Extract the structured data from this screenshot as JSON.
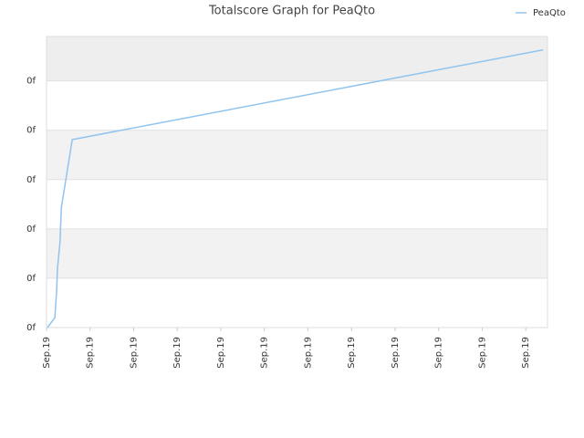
{
  "chart_data": {
    "type": "line",
    "title": "Totalscore Graph for PeaQto",
    "x": [
      0.02,
      0.19,
      0.23,
      0.25,
      0.31,
      0.34,
      0.59,
      11.4
    ],
    "series": [
      {
        "name": "PeaQto",
        "color": "#90c4ee",
        "values": [
          0,
          0.2,
          0.72,
          1.19,
          1.74,
          2.43,
          3.81,
          5.63
        ]
      }
    ],
    "xlim": [
      0,
      11.5
    ],
    "xticks": [
      {
        "value": 0,
        "label": "Sep.19"
      },
      {
        "value": 1,
        "label": "Sep.19"
      },
      {
        "value": 2,
        "label": "Sep.19"
      },
      {
        "value": 3,
        "label": "Sep.19"
      },
      {
        "value": 4,
        "label": "Sep.19"
      },
      {
        "value": 5,
        "label": "Sep.19"
      },
      {
        "value": 6,
        "label": "Sep.19"
      },
      {
        "value": 7,
        "label": "Sep.19"
      },
      {
        "value": 8,
        "label": "Sep.19"
      },
      {
        "value": 9,
        "label": "Sep.19"
      },
      {
        "value": 10,
        "label": "Sep.19"
      },
      {
        "value": 11,
        "label": "Sep.19"
      }
    ],
    "ylim": [
      0,
      5.9
    ],
    "yticks": [
      {
        "value": 0,
        "label": "0f"
      },
      {
        "value": 1,
        "label": "0f"
      },
      {
        "value": 2,
        "label": "0f"
      },
      {
        "value": 3,
        "label": "0f"
      },
      {
        "value": 4,
        "label": "0f"
      },
      {
        "value": 5,
        "label": "0f"
      }
    ],
    "grid": true,
    "legend": "top-right"
  }
}
